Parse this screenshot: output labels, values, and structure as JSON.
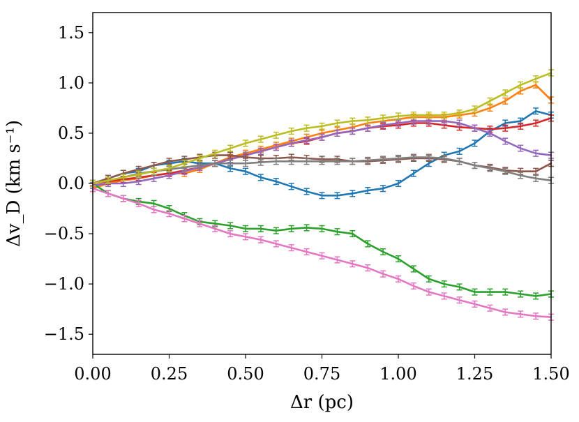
{
  "chart_data": {
    "type": "line",
    "title": "",
    "xlabel": "Δr (pc)",
    "ylabel": "Δv_D (km s⁻¹)",
    "xlim": [
      0,
      1.5
    ],
    "ylim": [
      -1.7,
      1.7
    ],
    "xticks": [
      0.0,
      0.25,
      0.5,
      0.75,
      1.0,
      1.25,
      1.5
    ],
    "xtick_labels": [
      "0.00",
      "0.25",
      "0.50",
      "0.75",
      "1.00",
      "1.25",
      "1.50"
    ],
    "yticks": [
      -1.5,
      -1.0,
      -0.5,
      0.0,
      0.5,
      1.0,
      1.5
    ],
    "ytick_labels": [
      "−1.5",
      "−1.0",
      "−0.5",
      "0.0",
      "0.5",
      "1.0",
      "1.5"
    ],
    "error_bar": 0.03,
    "series": [
      {
        "name": "blue",
        "color": "#1f77b4",
        "points": [
          [
            0,
            0.0
          ],
          [
            0.05,
            0.05
          ],
          [
            0.1,
            0.1
          ],
          [
            0.15,
            0.12
          ],
          [
            0.2,
            0.18
          ],
          [
            0.25,
            0.2
          ],
          [
            0.3,
            0.22
          ],
          [
            0.35,
            0.2
          ],
          [
            0.4,
            0.2
          ],
          [
            0.45,
            0.15
          ],
          [
            0.5,
            0.12
          ],
          [
            0.55,
            0.06
          ],
          [
            0.6,
            0.02
          ],
          [
            0.65,
            -0.03
          ],
          [
            0.7,
            -0.08
          ],
          [
            0.75,
            -0.12
          ],
          [
            0.8,
            -0.12
          ],
          [
            0.85,
            -0.1
          ],
          [
            0.9,
            -0.07
          ],
          [
            0.95,
            -0.05
          ],
          [
            1.0,
            0.0
          ],
          [
            1.05,
            0.1
          ],
          [
            1.1,
            0.2
          ],
          [
            1.15,
            0.28
          ],
          [
            1.2,
            0.32
          ],
          [
            1.25,
            0.4
          ],
          [
            1.3,
            0.52
          ],
          [
            1.35,
            0.6
          ],
          [
            1.4,
            0.62
          ],
          [
            1.45,
            0.72
          ],
          [
            1.5,
            0.68
          ]
        ]
      },
      {
        "name": "orange",
        "color": "#ff7f0e",
        "points": [
          [
            0,
            -0.05
          ],
          [
            0.05,
            0.0
          ],
          [
            0.1,
            0.03
          ],
          [
            0.15,
            0.05
          ],
          [
            0.2,
            0.08
          ],
          [
            0.25,
            0.1
          ],
          [
            0.3,
            0.1
          ],
          [
            0.35,
            0.14
          ],
          [
            0.4,
            0.2
          ],
          [
            0.45,
            0.26
          ],
          [
            0.5,
            0.3
          ],
          [
            0.55,
            0.34
          ],
          [
            0.6,
            0.38
          ],
          [
            0.65,
            0.42
          ],
          [
            0.7,
            0.46
          ],
          [
            0.75,
            0.5
          ],
          [
            0.8,
            0.53
          ],
          [
            0.85,
            0.56
          ],
          [
            0.9,
            0.6
          ],
          [
            0.95,
            0.62
          ],
          [
            1.0,
            0.64
          ],
          [
            1.05,
            0.66
          ],
          [
            1.1,
            0.66
          ],
          [
            1.15,
            0.66
          ],
          [
            1.2,
            0.68
          ],
          [
            1.25,
            0.7
          ],
          [
            1.3,
            0.75
          ],
          [
            1.35,
            0.82
          ],
          [
            1.4,
            0.92
          ],
          [
            1.45,
            0.98
          ],
          [
            1.5,
            0.83
          ]
        ]
      },
      {
        "name": "green",
        "color": "#2ca02c",
        "points": [
          [
            0,
            0.0
          ],
          [
            0.05,
            -0.1
          ],
          [
            0.1,
            -0.15
          ],
          [
            0.15,
            -0.18
          ],
          [
            0.2,
            -0.2
          ],
          [
            0.25,
            -0.25
          ],
          [
            0.3,
            -0.32
          ],
          [
            0.35,
            -0.38
          ],
          [
            0.4,
            -0.4
          ],
          [
            0.45,
            -0.42
          ],
          [
            0.5,
            -0.45
          ],
          [
            0.55,
            -0.45
          ],
          [
            0.6,
            -0.47
          ],
          [
            0.65,
            -0.45
          ],
          [
            0.7,
            -0.44
          ],
          [
            0.75,
            -0.45
          ],
          [
            0.8,
            -0.48
          ],
          [
            0.85,
            -0.5
          ],
          [
            0.9,
            -0.6
          ],
          [
            0.95,
            -0.68
          ],
          [
            1.0,
            -0.75
          ],
          [
            1.05,
            -0.85
          ],
          [
            1.1,
            -0.95
          ],
          [
            1.15,
            -1.0
          ],
          [
            1.2,
            -1.03
          ],
          [
            1.25,
            -1.08
          ],
          [
            1.3,
            -1.08
          ],
          [
            1.35,
            -1.08
          ],
          [
            1.4,
            -1.1
          ],
          [
            1.45,
            -1.12
          ],
          [
            1.5,
            -1.1
          ]
        ]
      },
      {
        "name": "red",
        "color": "#d62728",
        "points": [
          [
            0,
            0.0
          ],
          [
            0.05,
            0.02
          ],
          [
            0.1,
            0.04
          ],
          [
            0.15,
            0.06
          ],
          [
            0.2,
            0.08
          ],
          [
            0.25,
            0.1
          ],
          [
            0.3,
            0.13
          ],
          [
            0.35,
            0.16
          ],
          [
            0.4,
            0.2
          ],
          [
            0.45,
            0.24
          ],
          [
            0.5,
            0.28
          ],
          [
            0.55,
            0.32
          ],
          [
            0.6,
            0.36
          ],
          [
            0.65,
            0.4
          ],
          [
            0.7,
            0.42
          ],
          [
            0.75,
            0.46
          ],
          [
            0.8,
            0.5
          ],
          [
            0.85,
            0.52
          ],
          [
            0.9,
            0.55
          ],
          [
            0.95,
            0.57
          ],
          [
            1.0,
            0.58
          ],
          [
            1.05,
            0.6
          ],
          [
            1.1,
            0.6
          ],
          [
            1.15,
            0.58
          ],
          [
            1.2,
            0.56
          ],
          [
            1.25,
            0.55
          ],
          [
            1.3,
            0.54
          ],
          [
            1.35,
            0.55
          ],
          [
            1.4,
            0.57
          ],
          [
            1.45,
            0.6
          ],
          [
            1.5,
            0.65
          ]
        ]
      },
      {
        "name": "purple",
        "color": "#9467bd",
        "points": [
          [
            0,
            -0.02
          ],
          [
            0.05,
            0.0
          ],
          [
            0.1,
            0.0
          ],
          [
            0.15,
            0.02
          ],
          [
            0.2,
            0.05
          ],
          [
            0.25,
            0.08
          ],
          [
            0.3,
            0.12
          ],
          [
            0.35,
            0.16
          ],
          [
            0.4,
            0.2
          ],
          [
            0.45,
            0.24
          ],
          [
            0.5,
            0.28
          ],
          [
            0.55,
            0.32
          ],
          [
            0.6,
            0.36
          ],
          [
            0.65,
            0.4
          ],
          [
            0.7,
            0.43
          ],
          [
            0.75,
            0.46
          ],
          [
            0.8,
            0.5
          ],
          [
            0.85,
            0.52
          ],
          [
            0.9,
            0.55
          ],
          [
            0.95,
            0.58
          ],
          [
            1.0,
            0.6
          ],
          [
            1.05,
            0.62
          ],
          [
            1.1,
            0.62
          ],
          [
            1.15,
            0.62
          ],
          [
            1.2,
            0.6
          ],
          [
            1.25,
            0.55
          ],
          [
            1.3,
            0.5
          ],
          [
            1.35,
            0.42
          ],
          [
            1.4,
            0.35
          ],
          [
            1.45,
            0.3
          ],
          [
            1.5,
            0.28
          ]
        ]
      },
      {
        "name": "brown",
        "color": "#8c564b",
        "points": [
          [
            0,
            0.0
          ],
          [
            0.05,
            0.05
          ],
          [
            0.1,
            0.1
          ],
          [
            0.15,
            0.14
          ],
          [
            0.2,
            0.18
          ],
          [
            0.25,
            0.22
          ],
          [
            0.3,
            0.24
          ],
          [
            0.35,
            0.26
          ],
          [
            0.4,
            0.28
          ],
          [
            0.45,
            0.28
          ],
          [
            0.5,
            0.26
          ],
          [
            0.55,
            0.25
          ],
          [
            0.6,
            0.25
          ],
          [
            0.65,
            0.26
          ],
          [
            0.7,
            0.25
          ],
          [
            0.75,
            0.24
          ],
          [
            0.8,
            0.24
          ],
          [
            0.85,
            0.22
          ],
          [
            0.9,
            0.22
          ],
          [
            0.95,
            0.23
          ],
          [
            1.0,
            0.24
          ],
          [
            1.05,
            0.25
          ],
          [
            1.1,
            0.25
          ],
          [
            1.15,
            0.24
          ],
          [
            1.2,
            0.22
          ],
          [
            1.25,
            0.18
          ],
          [
            1.3,
            0.16
          ],
          [
            1.35,
            0.13
          ],
          [
            1.4,
            0.12
          ],
          [
            1.45,
            0.12
          ],
          [
            1.5,
            0.2
          ]
        ]
      },
      {
        "name": "gray",
        "color": "#7f7f7f",
        "points": [
          [
            0,
            0.0
          ],
          [
            0.05,
            0.03
          ],
          [
            0.1,
            0.06
          ],
          [
            0.15,
            0.1
          ],
          [
            0.2,
            0.12
          ],
          [
            0.25,
            0.14
          ],
          [
            0.3,
            0.16
          ],
          [
            0.35,
            0.18
          ],
          [
            0.4,
            0.2
          ],
          [
            0.45,
            0.2
          ],
          [
            0.5,
            0.2
          ],
          [
            0.55,
            0.21
          ],
          [
            0.6,
            0.22
          ],
          [
            0.65,
            0.22
          ],
          [
            0.7,
            0.22
          ],
          [
            0.75,
            0.22
          ],
          [
            0.8,
            0.22
          ],
          [
            0.85,
            0.22
          ],
          [
            0.9,
            0.23
          ],
          [
            0.95,
            0.24
          ],
          [
            1.0,
            0.25
          ],
          [
            1.05,
            0.26
          ],
          [
            1.1,
            0.26
          ],
          [
            1.15,
            0.25
          ],
          [
            1.2,
            0.22
          ],
          [
            1.25,
            0.18
          ],
          [
            1.3,
            0.15
          ],
          [
            1.35,
            0.12
          ],
          [
            1.4,
            0.08
          ],
          [
            1.45,
            0.05
          ],
          [
            1.5,
            0.03
          ]
        ]
      },
      {
        "name": "pink",
        "color": "#e377c2",
        "points": [
          [
            0,
            -0.05
          ],
          [
            0.05,
            -0.1
          ],
          [
            0.1,
            -0.15
          ],
          [
            0.15,
            -0.2
          ],
          [
            0.2,
            -0.26
          ],
          [
            0.25,
            -0.3
          ],
          [
            0.3,
            -0.35
          ],
          [
            0.35,
            -0.4
          ],
          [
            0.4,
            -0.45
          ],
          [
            0.45,
            -0.5
          ],
          [
            0.5,
            -0.53
          ],
          [
            0.55,
            -0.56
          ],
          [
            0.6,
            -0.6
          ],
          [
            0.65,
            -0.64
          ],
          [
            0.7,
            -0.68
          ],
          [
            0.75,
            -0.72
          ],
          [
            0.8,
            -0.76
          ],
          [
            0.85,
            -0.8
          ],
          [
            0.9,
            -0.84
          ],
          [
            0.95,
            -0.9
          ],
          [
            1.0,
            -0.95
          ],
          [
            1.05,
            -1.02
          ],
          [
            1.1,
            -1.08
          ],
          [
            1.15,
            -1.12
          ],
          [
            1.2,
            -1.16
          ],
          [
            1.25,
            -1.2
          ],
          [
            1.3,
            -1.24
          ],
          [
            1.35,
            -1.28
          ],
          [
            1.4,
            -1.3
          ],
          [
            1.45,
            -1.32
          ],
          [
            1.5,
            -1.33
          ]
        ]
      },
      {
        "name": "olive",
        "color": "#bcbd22",
        "points": [
          [
            0,
            0.0
          ],
          [
            0.05,
            0.03
          ],
          [
            0.1,
            0.06
          ],
          [
            0.15,
            0.09
          ],
          [
            0.2,
            0.12
          ],
          [
            0.25,
            0.15
          ],
          [
            0.3,
            0.2
          ],
          [
            0.35,
            0.25
          ],
          [
            0.4,
            0.3
          ],
          [
            0.45,
            0.35
          ],
          [
            0.5,
            0.4
          ],
          [
            0.55,
            0.44
          ],
          [
            0.6,
            0.48
          ],
          [
            0.65,
            0.52
          ],
          [
            0.7,
            0.55
          ],
          [
            0.75,
            0.57
          ],
          [
            0.8,
            0.6
          ],
          [
            0.85,
            0.62
          ],
          [
            0.9,
            0.63
          ],
          [
            0.95,
            0.65
          ],
          [
            1.0,
            0.67
          ],
          [
            1.05,
            0.68
          ],
          [
            1.1,
            0.68
          ],
          [
            1.15,
            0.68
          ],
          [
            1.2,
            0.7
          ],
          [
            1.25,
            0.74
          ],
          [
            1.3,
            0.82
          ],
          [
            1.35,
            0.9
          ],
          [
            1.4,
            0.98
          ],
          [
            1.45,
            1.04
          ],
          [
            1.5,
            1.1
          ]
        ]
      }
    ]
  }
}
